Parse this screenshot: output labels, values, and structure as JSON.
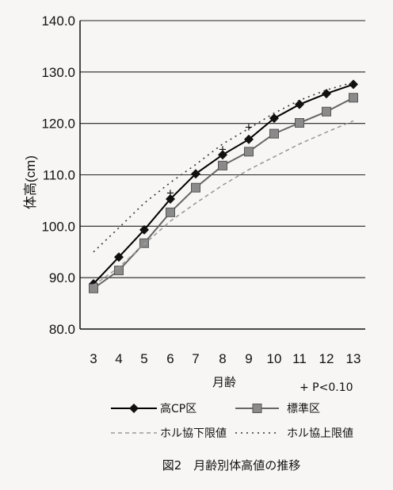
{
  "chart_data": {
    "type": "line",
    "title": "図2　月齢別体高値の推移",
    "xlabel": "月齢",
    "ylabel": "体高(cm)",
    "ylim": [
      80,
      140
    ],
    "ytick_labels": [
      "80.0",
      "90.0",
      "100.0",
      "110.0",
      "120.0",
      "130.0",
      "140.0"
    ],
    "categories": [
      "3",
      "4",
      "5",
      "6",
      "7",
      "8",
      "9",
      "10",
      "11",
      "12",
      "13"
    ],
    "grid": true,
    "significance_note": "+ P<0.10",
    "significance_marks": [
      {
        "x": "6",
        "y": 106.5
      },
      {
        "x": "8",
        "y": 115.0
      },
      {
        "x": "9",
        "y": 119.3
      },
      {
        "x": "10",
        "y": 121.0
      }
    ],
    "series": [
      {
        "name": "高CP区",
        "color": "#000000",
        "marker": "diamond",
        "style": "solid",
        "values": [
          88.8,
          94.0,
          99.3,
          105.3,
          110.2,
          113.9,
          116.9,
          121.0,
          123.7,
          125.8,
          127.6
        ]
      },
      {
        "name": "標準区",
        "color": "#666666",
        "marker": "square",
        "style": "solid",
        "values": [
          87.9,
          91.4,
          96.7,
          102.7,
          107.5,
          111.8,
          114.5,
          118.0,
          120.1,
          122.3,
          125.0
        ]
      },
      {
        "name": "ホル協下限値",
        "color": "#9a9a9a",
        "marker": "none",
        "style": "dashed",
        "values": [
          88.5,
          92.0,
          96.5,
          101.0,
          104.5,
          108.0,
          111.0,
          113.5,
          116.0,
          118.3,
          120.5
        ]
      },
      {
        "name": "ホル協上限値",
        "color": "#333333",
        "marker": "none",
        "style": "dotted",
        "values": [
          95.0,
          99.7,
          104.5,
          108.5,
          112.0,
          116.0,
          119.0,
          122.0,
          124.5,
          126.5,
          128.0
        ]
      }
    ]
  }
}
